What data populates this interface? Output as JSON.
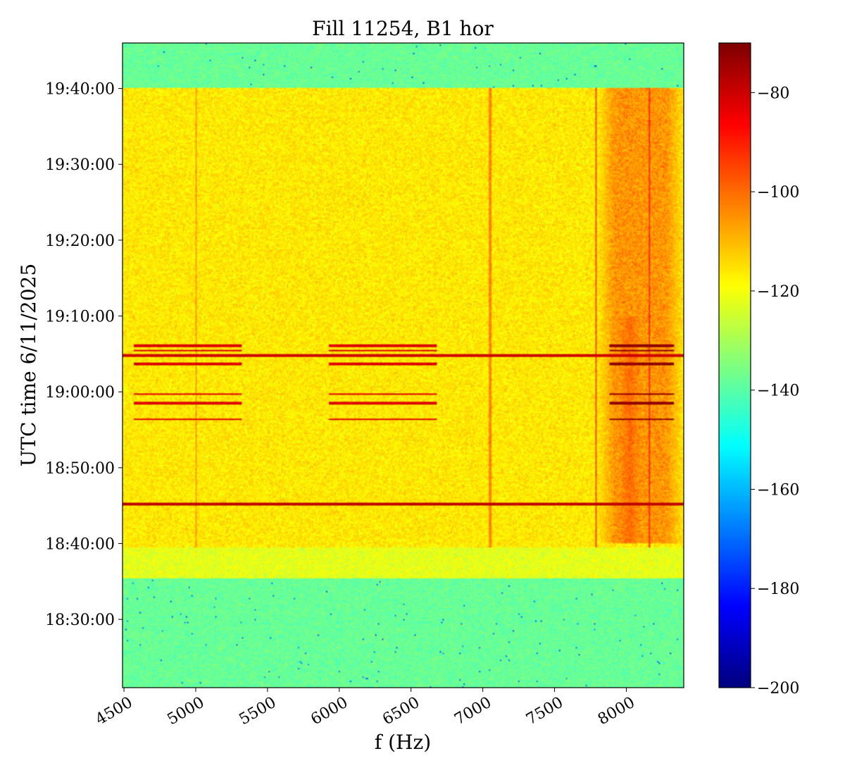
{
  "chart_data": {
    "type": "heatmap",
    "title": "Fill 11254, B1 hor",
    "xlabel": "f (Hz)",
    "ylabel": "UTC time 6/11/2025",
    "xlim": [
      4490,
      8400
    ],
    "ylim_minutes": [
      1101,
      1186
    ],
    "x_ticks": [
      {
        "label": "4500",
        "value": 4500
      },
      {
        "label": "5000",
        "value": 5000
      },
      {
        "label": "5500",
        "value": 5500
      },
      {
        "label": "6000",
        "value": 6000
      },
      {
        "label": "6500",
        "value": 6500
      },
      {
        "label": "7000",
        "value": 7000
      },
      {
        "label": "7500",
        "value": 7500
      },
      {
        "label": "8000",
        "value": 8000
      }
    ],
    "y_ticks": [
      {
        "label": "18:30:00",
        "minutes": 1110
      },
      {
        "label": "18:40:00",
        "minutes": 1120
      },
      {
        "label": "18:50:00",
        "minutes": 1130
      },
      {
        "label": "19:00:00",
        "minutes": 1140
      },
      {
        "label": "19:10:00",
        "minutes": 1150
      },
      {
        "label": "19:20:00",
        "minutes": 1160
      },
      {
        "label": "19:30:00",
        "minutes": 1170
      },
      {
        "label": "19:40:00",
        "minutes": 1180
      }
    ],
    "colorbar": {
      "colormap": "jet",
      "range": [
        -200,
        -70
      ],
      "ticks": [
        {
          "label": "−80",
          "value": -80
        },
        {
          "label": "−100",
          "value": -100
        },
        {
          "label": "−120",
          "value": -120
        },
        {
          "label": "−140",
          "value": -140
        },
        {
          "label": "−160",
          "value": -160
        },
        {
          "label": "−180",
          "value": -180
        },
        {
          "label": "−200",
          "value": -200
        }
      ]
    },
    "regions": [
      {
        "name": "noise floor before beam",
        "t_start": 1101,
        "t_end": 1115.5,
        "level_db": -138
      },
      {
        "name": "beam ramp",
        "t_start": 1115.5,
        "t_end": 1119.5,
        "level_db": -122
      },
      {
        "name": "beam present",
        "t_start": 1119.5,
        "t_end": 1180,
        "level_db": -116
      },
      {
        "name": "noise floor after beam",
        "t_start": 1180,
        "t_end": 1186,
        "level_db": -138
      }
    ],
    "hot_bands": [
      {
        "f_start": 7800,
        "f_end": 8400,
        "t_start": 1120,
        "t_end": 1180,
        "level_db": -102
      },
      {
        "f_start": 7950,
        "f_end": 8100,
        "t_start": 1120,
        "t_end": 1150,
        "level_db": -94
      }
    ],
    "horizontal_lines": [
      {
        "t": 1144.8,
        "level_db": -80,
        "f_start": 4490,
        "f_end": 8400
      },
      {
        "t": 1125.2,
        "level_db": -78,
        "f_start": 4490,
        "f_end": 8400
      }
    ],
    "line_groups": [
      {
        "f_start": 4570,
        "f_end": 5320,
        "times": [
          1146.1,
          1145.4,
          1143.7,
          1139.7,
          1138.5,
          1136.4
        ],
        "level_db": -82
      },
      {
        "f_start": 5930,
        "f_end": 6680,
        "times": [
          1146.1,
          1145.4,
          1143.7,
          1139.7,
          1138.5,
          1136.4
        ],
        "level_db": -82
      },
      {
        "f_start": 7880,
        "f_end": 8330,
        "times": [
          1146.1,
          1145.4,
          1143.7,
          1139.7,
          1138.5,
          1136.4
        ],
        "level_db": -72
      }
    ],
    "vertical_lines": [
      {
        "f": 5000,
        "level_db": -106
      },
      {
        "f": 7050,
        "level_db": -103
      },
      {
        "f": 7790,
        "level_db": -96
      },
      {
        "f": 8160,
        "level_db": -92
      }
    ]
  }
}
